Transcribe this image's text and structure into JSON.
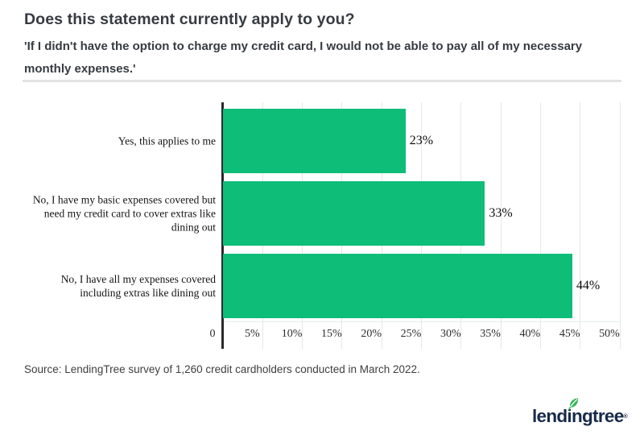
{
  "header": {
    "title": "Does this statement currently apply to you?",
    "subtitle": "'If I didn't have the option to charge my credit card, I would not be able to pay all of my necessary\nmonthly expenses.'"
  },
  "chart_data": {
    "type": "bar",
    "orientation": "horizontal",
    "title": "Does this statement currently apply to you?",
    "subtitle": "'If I didn't have the option to charge my credit card, I would not be able to pay all of my necessary monthly expenses.'",
    "categories": [
      "Yes, this applies to me",
      "No, I have my basic expenses covered but\nneed my credit card to cover extras like\ndining out",
      "No, I have all my expenses covered\nincluding extras like dining out"
    ],
    "values": [
      23,
      33,
      44
    ],
    "value_labels": [
      "23%",
      "33%",
      "44%"
    ],
    "xlim": [
      0,
      50
    ],
    "xticks": [
      0,
      5,
      10,
      15,
      20,
      25,
      30,
      35,
      40,
      45,
      50
    ],
    "xtick_labels": [
      "0",
      "5%",
      "10%",
      "15%",
      "20%",
      "25%",
      "30%",
      "35%",
      "40%",
      "45%",
      "50%"
    ],
    "grid": true,
    "legend": null,
    "bar_color": "#0dbd78"
  },
  "footer": {
    "source": "Source: LendingTree survey of 1,260 credit cardholders conducted in March 2022.",
    "logo_text": "lendingtree",
    "logo_reg": "®"
  },
  "colors": {
    "bar": "#0dbd78",
    "axis": "#2a2a2a",
    "grid": "#e7e7e7",
    "title_text": "#363b42",
    "logo_navy": "#182a4a",
    "leaf_green": "#35b45a"
  }
}
